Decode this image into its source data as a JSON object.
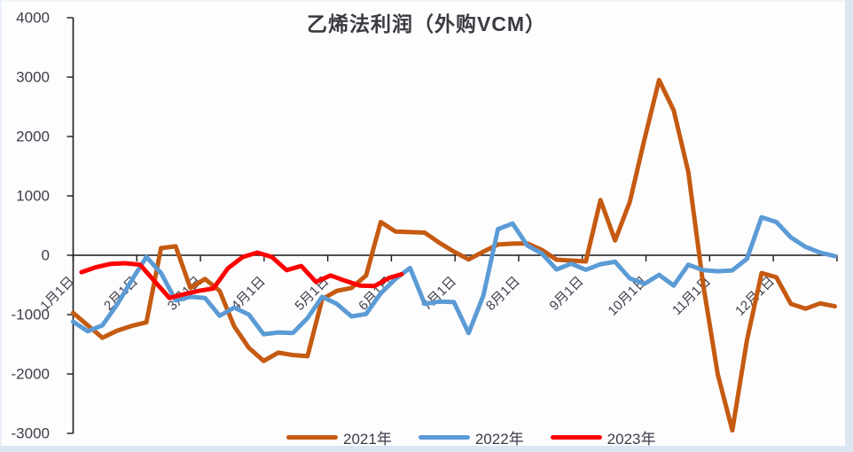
{
  "title": "乙烯法利润（外购VCM）",
  "colors": {
    "series_2021": "#C55A11",
    "series_2022": "#5B9BD5",
    "series_2023": "#FF0000",
    "axis": "#1a1a1a",
    "tick_label": "#3e3e4a"
  },
  "legend": [
    {
      "label": "2021年",
      "color": "#C55A11"
    },
    {
      "label": "2022年",
      "color": "#5B9BD5"
    },
    {
      "label": "2023年",
      "color": "#FF0000"
    }
  ],
  "chart_data": {
    "type": "line",
    "title": "乙烯法利润（外购VCM）",
    "xlabel": "",
    "ylabel": "",
    "ylim": [
      -3000,
      4000
    ],
    "y_tick_step": 1000,
    "y_tick_labels": [
      "4000",
      "3000",
      "2000",
      "1000",
      "0",
      "-1000",
      "-2000",
      "-3000"
    ],
    "x_tick_labels": [
      "1月1日",
      "2月1日",
      "3月1日",
      "4月1日",
      "5月1日",
      "6月1日",
      "7月1日",
      "8月1日",
      "9月1日",
      "10月1日",
      "11月1日",
      "12月1日"
    ],
    "x_unit": "day_of_year",
    "grid": false,
    "legend_position": "bottom",
    "series": [
      {
        "name": "2021年",
        "color": "#C55A11",
        "points": [
          [
            0,
            -970
          ],
          [
            7,
            -1180
          ],
          [
            14,
            -1390
          ],
          [
            21,
            -1270
          ],
          [
            28,
            -1190
          ],
          [
            35,
            -1130
          ],
          [
            42,
            120
          ],
          [
            49,
            150
          ],
          [
            56,
            -550
          ],
          [
            63,
            -400
          ],
          [
            70,
            -600
          ],
          [
            77,
            -1200
          ],
          [
            84,
            -1560
          ],
          [
            91,
            -1780
          ],
          [
            98,
            -1640
          ],
          [
            105,
            -1680
          ],
          [
            112,
            -1700
          ],
          [
            119,
            -740
          ],
          [
            126,
            -600
          ],
          [
            133,
            -550
          ],
          [
            140,
            -340
          ],
          [
            147,
            560
          ],
          [
            154,
            400
          ],
          [
            161,
            390
          ],
          [
            168,
            380
          ],
          [
            175,
            210
          ],
          [
            182,
            60
          ],
          [
            189,
            -70
          ],
          [
            196,
            60
          ],
          [
            203,
            180
          ],
          [
            210,
            195
          ],
          [
            217,
            200
          ],
          [
            224,
            90
          ],
          [
            231,
            -75
          ],
          [
            238,
            -90
          ],
          [
            245,
            -105
          ],
          [
            252,
            930
          ],
          [
            259,
            250
          ],
          [
            266,
            900
          ],
          [
            273,
            1950
          ],
          [
            280,
            2950
          ],
          [
            287,
            2440
          ],
          [
            294,
            1400
          ],
          [
            301,
            -480
          ],
          [
            308,
            -2000
          ],
          [
            315,
            -2950
          ],
          [
            322,
            -1430
          ],
          [
            329,
            -300
          ],
          [
            336,
            -370
          ],
          [
            343,
            -820
          ],
          [
            350,
            -900
          ],
          [
            357,
            -810
          ],
          [
            364,
            -860
          ]
        ]
      },
      {
        "name": "2022年",
        "color": "#5B9BD5",
        "points": [
          [
            0,
            -1120
          ],
          [
            7,
            -1280
          ],
          [
            14,
            -1180
          ],
          [
            21,
            -830
          ],
          [
            28,
            -420
          ],
          [
            35,
            -30
          ],
          [
            42,
            -300
          ],
          [
            49,
            -760
          ],
          [
            56,
            -700
          ],
          [
            63,
            -720
          ],
          [
            70,
            -1020
          ],
          [
            77,
            -880
          ],
          [
            84,
            -1000
          ],
          [
            91,
            -1330
          ],
          [
            98,
            -1300
          ],
          [
            105,
            -1310
          ],
          [
            112,
            -1060
          ],
          [
            119,
            -700
          ],
          [
            126,
            -820
          ],
          [
            133,
            -1030
          ],
          [
            140,
            -990
          ],
          [
            147,
            -640
          ],
          [
            154,
            -400
          ],
          [
            161,
            -215
          ],
          [
            168,
            -820
          ],
          [
            175,
            -780
          ],
          [
            182,
            -790
          ],
          [
            189,
            -1310
          ],
          [
            196,
            -680
          ],
          [
            203,
            440
          ],
          [
            210,
            535
          ],
          [
            217,
            165
          ],
          [
            224,
            30
          ],
          [
            231,
            -240
          ],
          [
            238,
            -140
          ],
          [
            245,
            -245
          ],
          [
            252,
            -150
          ],
          [
            259,
            -110
          ],
          [
            266,
            -390
          ],
          [
            273,
            -480
          ],
          [
            280,
            -330
          ],
          [
            287,
            -510
          ],
          [
            294,
            -160
          ],
          [
            301,
            -250
          ],
          [
            308,
            -270
          ],
          [
            315,
            -255
          ],
          [
            322,
            -60
          ],
          [
            329,
            640
          ],
          [
            336,
            560
          ],
          [
            343,
            300
          ],
          [
            350,
            140
          ],
          [
            357,
            45
          ],
          [
            364,
            -15
          ]
        ]
      },
      {
        "name": "2023年",
        "color": "#FF0000",
        "points": [
          [
            4,
            -285
          ],
          [
            11,
            -200
          ],
          [
            18,
            -145
          ],
          [
            25,
            -135
          ],
          [
            32,
            -160
          ],
          [
            39,
            -440
          ],
          [
            46,
            -720
          ],
          [
            53,
            -655
          ],
          [
            60,
            -600
          ],
          [
            67,
            -560
          ],
          [
            74,
            -220
          ],
          [
            81,
            -30
          ],
          [
            88,
            45
          ],
          [
            95,
            -30
          ],
          [
            102,
            -250
          ],
          [
            109,
            -180
          ],
          [
            116,
            -450
          ],
          [
            123,
            -340
          ],
          [
            130,
            -430
          ],
          [
            137,
            -510
          ],
          [
            144,
            -520
          ],
          [
            151,
            -380
          ],
          [
            157,
            -320
          ]
        ]
      }
    ]
  }
}
